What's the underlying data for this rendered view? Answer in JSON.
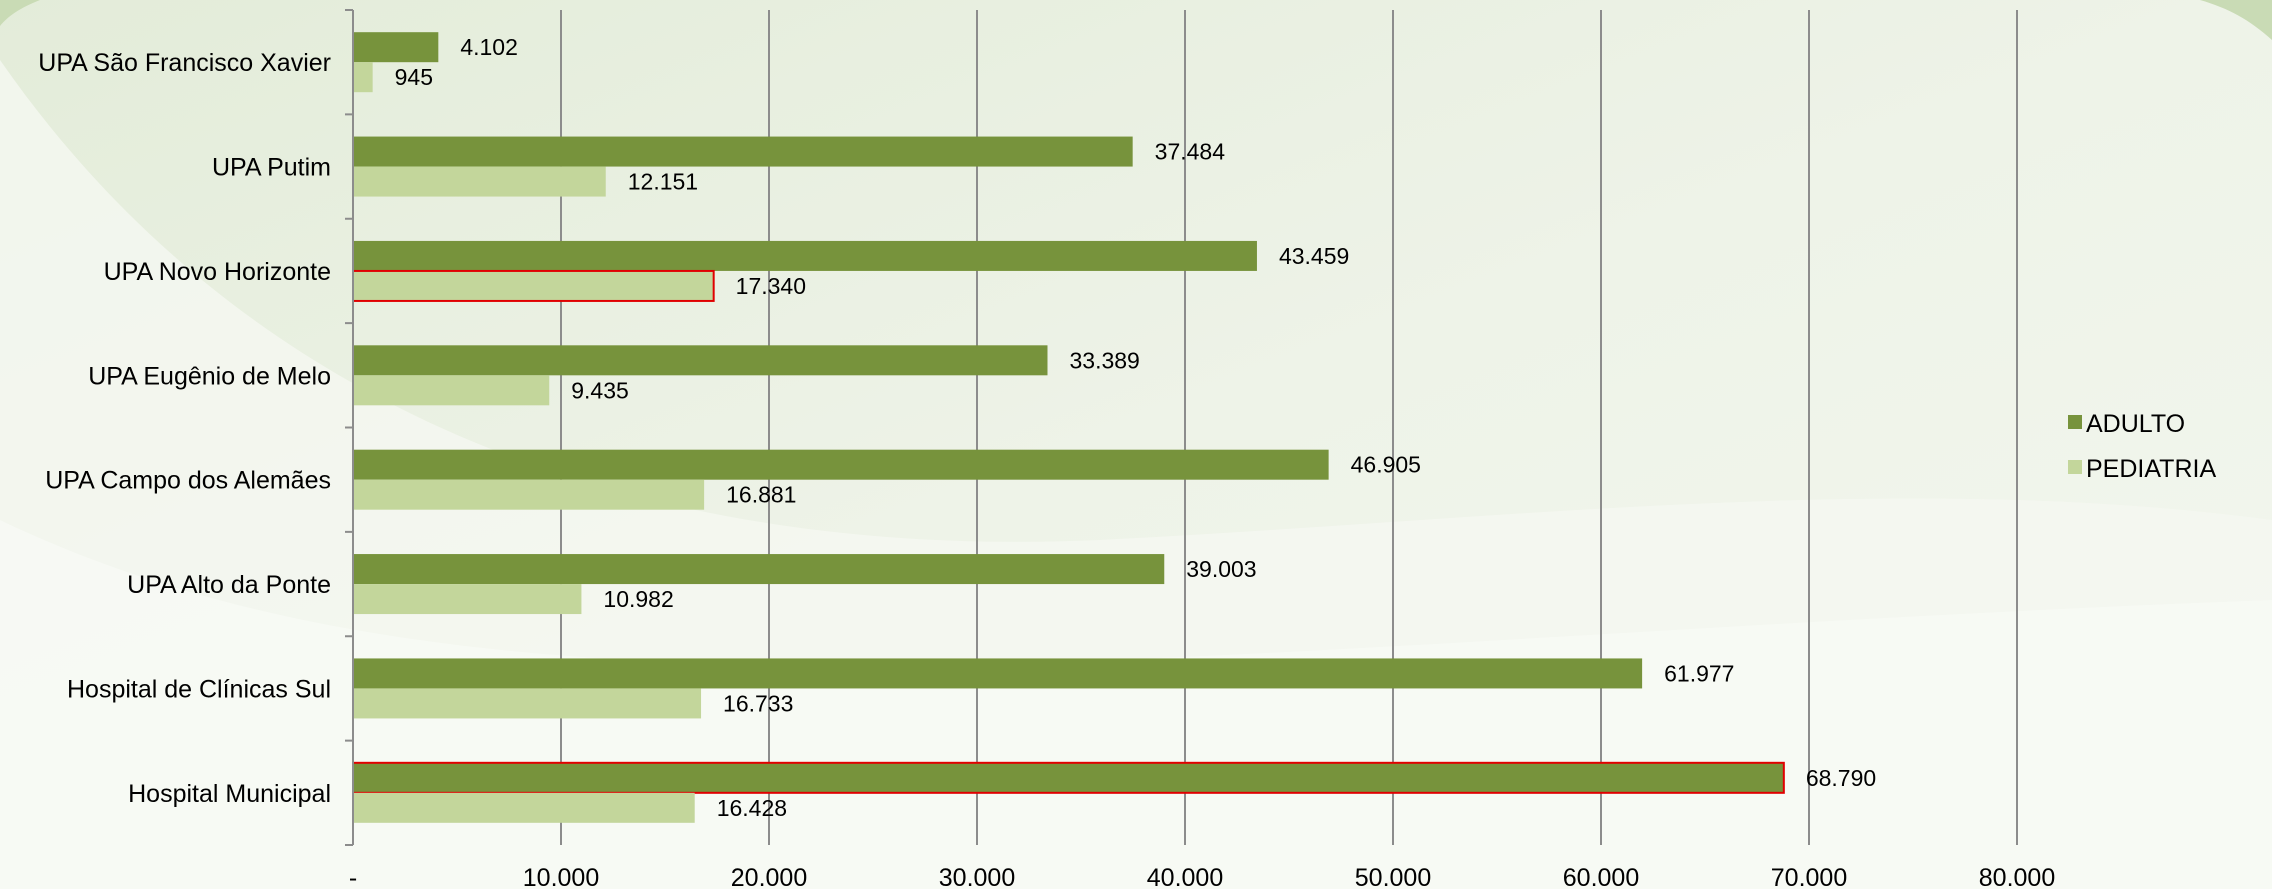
{
  "chart_data": {
    "type": "bar",
    "orientation": "horizontal",
    "title": "",
    "xlabel": "",
    "ylabel": "",
    "categories": [
      "UPA São Francisco Xavier",
      "UPA Putim",
      "UPA Novo Horizonte",
      "UPA Eugênio de Melo",
      "UPA Campo dos Alemães",
      "UPA Alto da Ponte",
      "Hospital de Clínicas Sul",
      "Hospital Municipal"
    ],
    "series": [
      {
        "name": "ADULTO",
        "color": "#77933c",
        "values": [
          4102,
          37484,
          43459,
          33389,
          46905,
          39003,
          61977,
          68790
        ],
        "labels": [
          "4.102",
          "37.484",
          "43.459",
          "33.389",
          "46.905",
          "39.003",
          "61.977",
          "68.790"
        ]
      },
      {
        "name": "PEDIATRIA",
        "color": "#c3d69b",
        "values": [
          945,
          12151,
          17340,
          9435,
          16881,
          10982,
          16733,
          16428
        ],
        "labels": [
          "945",
          "12.151",
          "17.340",
          "9.435",
          "16.881",
          "10.982",
          "16.733",
          "16.428"
        ]
      }
    ],
    "highlighted": [
      {
        "series": "PEDIATRIA",
        "category": "UPA Novo Horizonte",
        "outline_color": "#e00000"
      },
      {
        "series": "ADULTO",
        "category": "Hospital Municipal",
        "outline_color": "#e00000"
      }
    ],
    "xlim": [
      0,
      80000
    ],
    "xticks": [
      0,
      10000,
      20000,
      30000,
      40000,
      50000,
      60000,
      70000,
      80000
    ],
    "xtick_labels": [
      "-",
      "10.000",
      "20.000",
      "30.000",
      "40.000",
      "50.000",
      "60.000",
      "70.000",
      "80.000"
    ],
    "grid": true,
    "legend_position": "right",
    "gridline_color": "#8c8c8c"
  }
}
